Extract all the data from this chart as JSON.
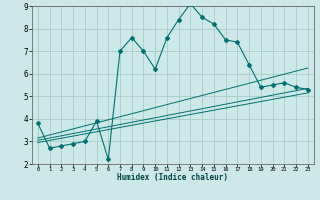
{
  "xlabel": "Humidex (Indice chaleur)",
  "background_color": "#cce8e8",
  "grid_color": "#aacaca",
  "line_color": "#007070",
  "xlim": [
    -0.5,
    23.5
  ],
  "ylim": [
    2,
    9
  ],
  "yticks": [
    2,
    3,
    4,
    5,
    6,
    7,
    8,
    9
  ],
  "xticks": [
    0,
    1,
    2,
    3,
    4,
    5,
    6,
    7,
    8,
    9,
    10,
    11,
    12,
    13,
    14,
    15,
    16,
    17,
    18,
    19,
    20,
    21,
    22,
    23
  ],
  "main_line_x": [
    0,
    1,
    2,
    3,
    4,
    5,
    6,
    7,
    8,
    9,
    10,
    11,
    12,
    13,
    14,
    15,
    16,
    17,
    18,
    19,
    20,
    21,
    22,
    23
  ],
  "main_line_y": [
    3.8,
    2.7,
    2.8,
    2.9,
    3.0,
    3.9,
    2.2,
    7.0,
    7.6,
    7.0,
    6.2,
    7.6,
    8.4,
    9.1,
    8.5,
    8.2,
    7.5,
    7.4,
    6.4,
    5.4,
    5.5,
    5.6,
    5.4,
    5.3
  ],
  "reg_line1_x": [
    0,
    23
  ],
  "reg_line1_y": [
    2.95,
    5.15
  ],
  "reg_line2_x": [
    0,
    23
  ],
  "reg_line2_y": [
    3.05,
    5.35
  ],
  "reg_line3_x": [
    0,
    23
  ],
  "reg_line3_y": [
    3.15,
    6.25
  ]
}
